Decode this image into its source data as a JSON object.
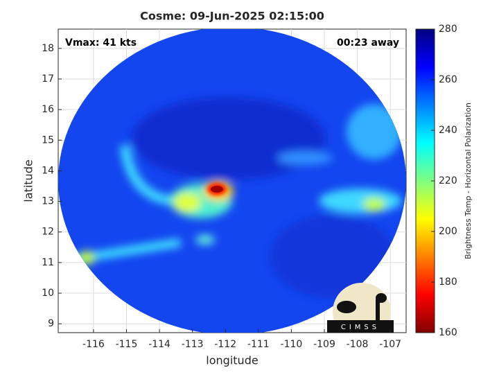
{
  "chart_data": {
    "type": "image",
    "title": "Cosme: 09-Jun-2025 02:15:00",
    "xlabel": "longitude",
    "ylabel": "latitude",
    "annotations": [
      "Vmax: 41 kts",
      "00:23 away"
    ],
    "logo": "CIMSS",
    "xlim": [
      -117.07,
      -106.52
    ],
    "xticks": [
      -116,
      -115,
      -114,
      -113,
      -112,
      -111,
      -110,
      -109,
      -108,
      -107
    ],
    "ylim": [
      8.71,
      18.63
    ],
    "yticks": [
      9,
      10,
      11,
      12,
      13,
      14,
      15,
      16,
      17,
      18
    ],
    "grid": true,
    "colorbar": {
      "label": "Brightness Temp - Horizontal Polarization",
      "lim": [
        160,
        280
      ],
      "ticks": [
        160,
        180,
        200,
        220,
        240,
        260,
        280
      ],
      "colors": [
        "#800000",
        "#ff0000",
        "#ff8000",
        "#ffff00",
        "#80ff80",
        "#00ffff",
        "#0080ff",
        "#0000ff",
        "#000080"
      ]
    }
  }
}
